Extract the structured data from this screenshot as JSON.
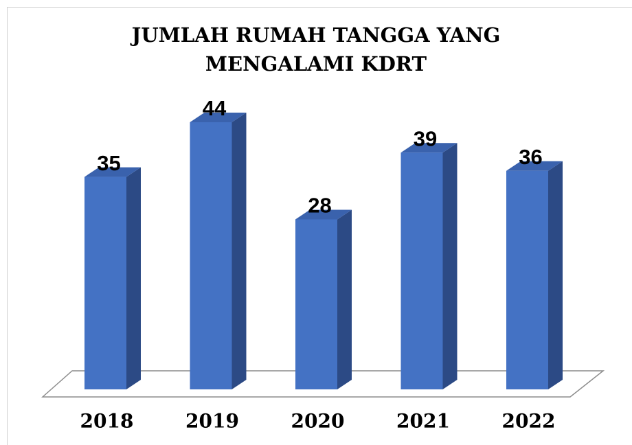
{
  "chart_data": {
    "type": "bar3d",
    "title": "JUMLAH RUMAH TANGGA YANG MENGALAMI KDRT",
    "categories": [
      "2018",
      "2019",
      "2020",
      "2021",
      "2022"
    ],
    "values": [
      35,
      44,
      28,
      39,
      36
    ],
    "color": "#4472c4"
  }
}
